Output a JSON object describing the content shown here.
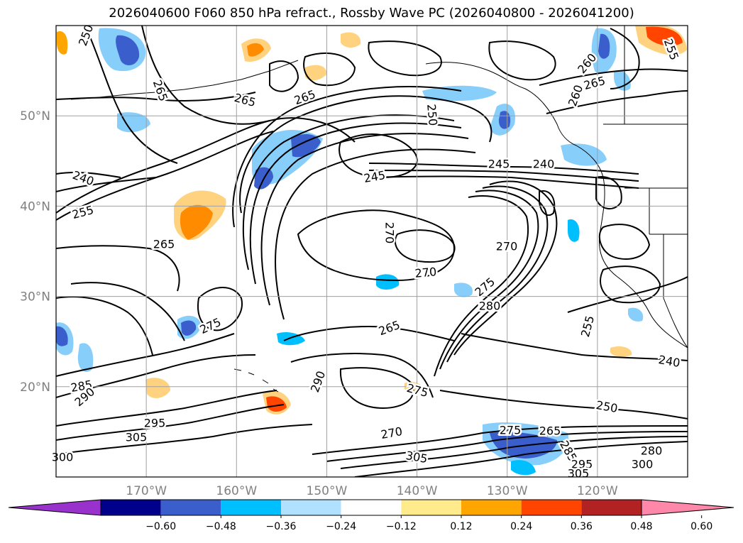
{
  "title": "2026040600 F060 850 hPa refract., Rossby Wave PC (2026040800 - 2026041200)",
  "map": {
    "lon_range": [
      -180,
      -110
    ],
    "lat_range": [
      10,
      60
    ],
    "lat_ticks": [
      {
        "value": 50,
        "label": "50°N"
      },
      {
        "value": 40,
        "label": "40°N"
      },
      {
        "value": 30,
        "label": "30°N"
      },
      {
        "value": 20,
        "label": "20°N"
      }
    ],
    "lon_ticks": [
      {
        "value": -170,
        "label": "170°W"
      },
      {
        "value": -160,
        "label": "160°W"
      },
      {
        "value": -150,
        "label": "150°W"
      },
      {
        "value": -140,
        "label": "140°W"
      },
      {
        "value": -130,
        "label": "130°W"
      },
      {
        "value": -120,
        "label": "120°W"
      }
    ],
    "contour_labels": [
      "250",
      "265",
      "265",
      "265",
      "250",
      "260",
      "265",
      "260",
      "255",
      "240",
      "245",
      "245",
      "240",
      "255",
      "265",
      "270",
      "270",
      "270",
      "275",
      "265",
      "280",
      "275",
      "255",
      "240",
      "285",
      "290",
      "295",
      "305",
      "290",
      "275",
      "270",
      "305",
      "250",
      "275",
      "265",
      "285",
      "295",
      "300",
      "305",
      "280",
      "300"
    ]
  },
  "colorbar": {
    "ticks": [
      "−0.60",
      "−0.48",
      "−0.36",
      "−0.24",
      "−0.12",
      "0.12",
      "0.24",
      "0.36",
      "0.48",
      "0.60"
    ],
    "colors": [
      "#9932cc",
      "#00008b",
      "#3a5fcd",
      "#00bfff",
      "#b0e2ff",
      "#ffffff",
      "#ffeb8c",
      "#ffa500",
      "#ff4500",
      "#b22222",
      "#ff88aa"
    ]
  }
}
